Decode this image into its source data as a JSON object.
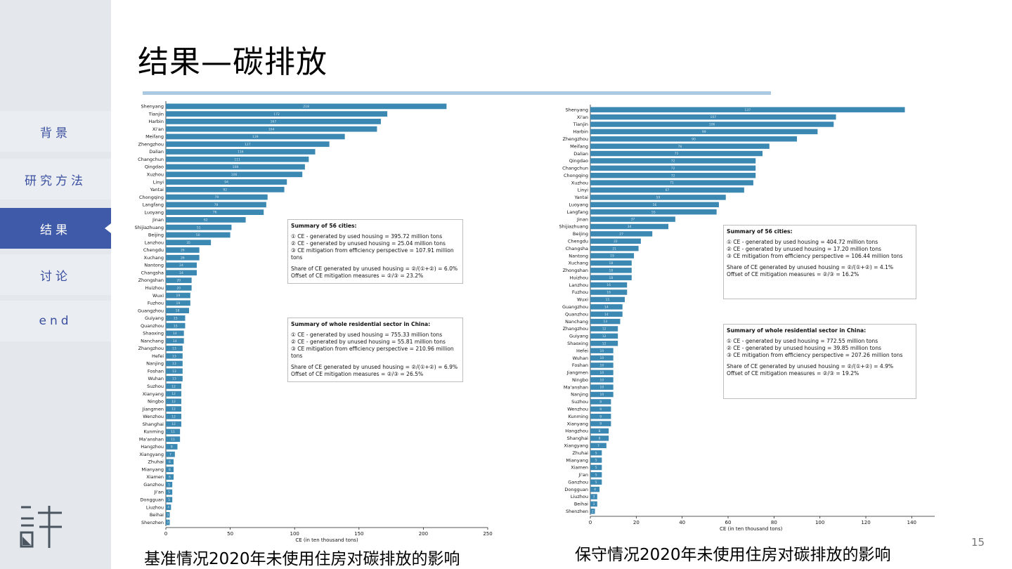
{
  "slide": {
    "title": "结果—碳排放",
    "page_number": "15",
    "caption_left": "基准情况2020年未使用住房对碳排放的影响",
    "caption_right": "保守情况2020年未使用住房对碳排放的影响"
  },
  "nav": {
    "items": [
      {
        "label": "背景"
      },
      {
        "label": "研究方法"
      },
      {
        "label": "结果"
      },
      {
        "label": "讨论"
      },
      {
        "label": "end"
      }
    ]
  },
  "colors": {
    "bar": "#3b88b3",
    "nav_active": "#3f5aa8",
    "rule": "#a9c8e2"
  },
  "chart_data": [
    {
      "type": "bar",
      "orientation": "horizontal",
      "xlabel": "CE (in ten thousand tons)",
      "xlim": [
        0,
        250
      ],
      "xticks": [
        0,
        50,
        100,
        150,
        200,
        250
      ],
      "categories": [
        "Shenyang",
        "Tianjin",
        "Harbin",
        "Xi'an",
        "Meifang",
        "Zhengzhou",
        "Dalian",
        "Changchun",
        "Qingdao",
        "Xuzhou",
        "Linyi",
        "Yantai",
        "Chongqing",
        "Langfang",
        "Luoyang",
        "Jinan",
        "Shijiazhuang",
        "Beijing",
        "Lanzhou",
        "Chengdu",
        "Xuchang",
        "Nantong",
        "Changsha",
        "Zhongshan",
        "Huizhou",
        "Wuxi",
        "Fuzhou",
        "Guangzhou",
        "Guiyang",
        "Quanzhou",
        "Shaoxing",
        "Nanchang",
        "Zhangzhou",
        "Hefei",
        "Nanjing",
        "Foshan",
        "Wuhan",
        "Suzhou",
        "Xianyang",
        "Ningbo",
        "Jiangmen",
        "Wenzhou",
        "Shanghai",
        "Kunming",
        "Ma'anshan",
        "Hangzhou",
        "Xiangyang",
        "Zhuhai",
        "Mianyang",
        "Xiamen",
        "Ganzhou",
        "Ji'an",
        "Dongguan",
        "Liuzhou",
        "Beihai",
        "Shenzhen"
      ],
      "values": [
        218,
        172,
        167,
        164,
        139,
        127,
        116,
        111,
        108,
        106,
        94,
        92,
        79,
        78,
        76,
        62,
        51,
        50,
        35,
        26,
        26,
        24,
        24,
        20,
        20,
        19,
        19,
        18,
        15,
        15,
        14,
        14,
        13,
        13,
        13,
        13,
        13,
        12,
        12,
        12,
        12,
        12,
        12,
        11,
        11,
        9,
        7,
        6,
        6,
        6,
        5,
        5,
        5,
        4,
        3,
        3
      ],
      "summary_boxes": [
        {
          "title": "Summary of 56 cities:",
          "lines": [
            "① CE - generated by used housing = 395.72 million tons",
            "② CE - generated by unused housing = 25.04 million tons",
            "③ CE mitigation from efficiency perspective = 107.91 million tons"
          ],
          "ratios": [
            "Share of CE generated by unused housing = ②/(①+②) = 6.0%",
            "Offset of CE mitigation measures = ②/③ = 23.2%"
          ]
        },
        {
          "title": "Summary of whole residential sector in China:",
          "lines": [
            "① CE - generated by used housing = 755.33 million tons",
            "② CE - generated by unused housing = 55.81 million tons",
            "③ CE mitigation from efficiency perspective = 210.96 million tons"
          ],
          "ratios": [
            "Share of CE generated by unused housing = ②/(①+②) = 6.9%",
            "Offset of CE mitigation measures = ②/③ = 26.5%"
          ]
        }
      ]
    },
    {
      "type": "bar",
      "orientation": "horizontal",
      "xlabel": "CE (in ten thousand tons)",
      "xlim": [
        0,
        150
      ],
      "xticks": [
        0,
        20,
        40,
        60,
        80,
        100,
        120,
        140
      ],
      "categories": [
        "Shenyang",
        "Xi'an",
        "Tianjin",
        "Harbin",
        "Zhengzhou",
        "Meifang",
        "Dalian",
        "Qingdao",
        "Changchun",
        "Chongqing",
        "Xuzhou",
        "Linyi",
        "Yantai",
        "Luoyang",
        "Langfang",
        "Jinan",
        "Shijiazhuang",
        "Beijing",
        "Chengdu",
        "Changsha",
        "Nantong",
        "Xuchang",
        "Zhongshan",
        "Huizhou",
        "Lanzhou",
        "Fuzhou",
        "Wuxi",
        "Guangzhou",
        "Quanzhou",
        "Nanchang",
        "Zhangzhou",
        "Guiyang",
        "Shaoxing",
        "Hefei",
        "Wuhan",
        "Foshan",
        "Jiangmen",
        "Ningbo",
        "Ma'anshan",
        "Nanjing",
        "Suzhou",
        "Wenzhou",
        "Kunming",
        "Xianyang",
        "Hangzhou",
        "Shanghai",
        "Xiangyang",
        "Zhuhai",
        "Mianyang",
        "Xiamen",
        "Ji'an",
        "Ganzhou",
        "Dongguan",
        "Liuzhou",
        "Beihai",
        "Shenzhen"
      ],
      "values": [
        137,
        107,
        106,
        99,
        90,
        78,
        75,
        72,
        72,
        72,
        71,
        67,
        59,
        56,
        55,
        37,
        34,
        27,
        22,
        21,
        19,
        18,
        18,
        18,
        16,
        16,
        15,
        14,
        14,
        13,
        12,
        12,
        12,
        10,
        10,
        10,
        10,
        10,
        10,
        10,
        9,
        9,
        9,
        9,
        8,
        8,
        7,
        5,
        5,
        5,
        5,
        5,
        4,
        3,
        3,
        2
      ],
      "summary_boxes": [
        {
          "title": "Summary of 56 cities:",
          "lines": [
            "① CE - generated by used housing = 404.72 million tons",
            "② CE - generated by unused housing = 17.20 million tons",
            "③ CE mitigation from efficiency perspective = 106.44 million tons"
          ],
          "ratios": [
            "Share of CE generated by unused housing = ②/(①+②) = 4.1%",
            "Offset of CE mitigation measures = ②/③ = 16.2%"
          ]
        },
        {
          "title": "Summary of whole residential sector in China:",
          "lines": [
            "① CE - generated by used housing = 772.55 million tons",
            "② CE - generated by unused housing = 39.85 million tons",
            "③ CE mitigation from efficiency perspective = 207.26 million tons"
          ],
          "ratios": [
            "Share of CE generated by unused housing = ②/(①+②) = 4.9%",
            "Offset of CE mitigation measures = ②/③ = 19.2%"
          ]
        }
      ]
    }
  ]
}
